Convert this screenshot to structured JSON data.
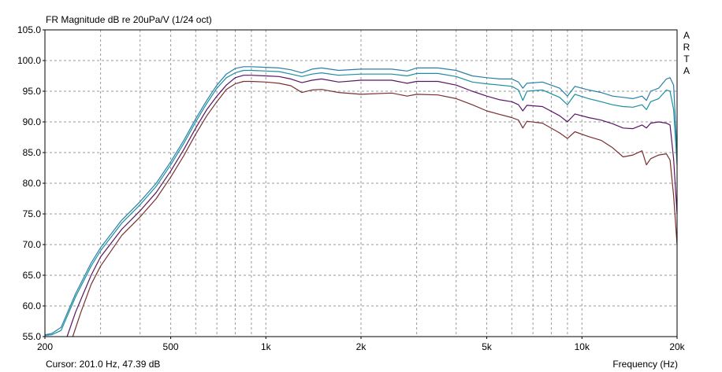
{
  "chart_data": {
    "type": "line",
    "title": "FR Magnitude dB re 20uPa/V (1/24 oct)",
    "brand": "ARTA",
    "cursor_readout": "Cursor: 201.0 Hz, 47.39 dB",
    "xlabel": "Frequency (Hz)",
    "ylabel": "",
    "xscale": "log",
    "xlim": [
      200,
      20000
    ],
    "ylim": [
      55,
      105
    ],
    "grid": true,
    "x_ticks": [
      {
        "value": 200,
        "label": "200"
      },
      {
        "value": 500,
        "label": "500"
      },
      {
        "value": 1000,
        "label": "1k"
      },
      {
        "value": 2000,
        "label": "2k"
      },
      {
        "value": 5000,
        "label": "5k"
      },
      {
        "value": 10000,
        "label": "10k"
      },
      {
        "value": 20000,
        "label": "20k"
      }
    ],
    "y_ticks": [
      {
        "value": 105,
        "label": "105.0"
      },
      {
        "value": 100,
        "label": "100.0"
      },
      {
        "value": 95,
        "label": "95.0"
      },
      {
        "value": 90,
        "label": "90.0"
      },
      {
        "value": 85,
        "label": "85.0"
      },
      {
        "value": 80,
        "label": "80.0"
      },
      {
        "value": 75,
        "label": "75.0"
      },
      {
        "value": 70,
        "label": "70.0"
      },
      {
        "value": 65,
        "label": "65.0"
      },
      {
        "value": 60,
        "label": "60.0"
      },
      {
        "value": 55,
        "label": "55.0"
      }
    ],
    "series": [
      {
        "color": "#2a7fa8",
        "points": [
          [
            200,
            55.3
          ],
          [
            210,
            55.5
          ],
          [
            225,
            56.5
          ],
          [
            250,
            62
          ],
          [
            280,
            67
          ],
          [
            300,
            69.5
          ],
          [
            350,
            74
          ],
          [
            400,
            77
          ],
          [
            450,
            80
          ],
          [
            500,
            83.5
          ],
          [
            550,
            87
          ],
          [
            600,
            90.5
          ],
          [
            650,
            93.5
          ],
          [
            700,
            96
          ],
          [
            750,
            97.8
          ],
          [
            800,
            98.7
          ],
          [
            850,
            99
          ],
          [
            900,
            99
          ],
          [
            1000,
            98.9
          ],
          [
            1100,
            98.8
          ],
          [
            1200,
            98.5
          ],
          [
            1300,
            98
          ],
          [
            1400,
            98.6
          ],
          [
            1500,
            98.8
          ],
          [
            1700,
            98.4
          ],
          [
            2000,
            98.6
          ],
          [
            2500,
            98.6
          ],
          [
            2800,
            98.3
          ],
          [
            3000,
            98.8
          ],
          [
            3500,
            98.8
          ],
          [
            4000,
            98.4
          ],
          [
            4500,
            97.5
          ],
          [
            5000,
            97.2
          ],
          [
            5500,
            97
          ],
          [
            6000,
            97
          ],
          [
            6300,
            96.5
          ],
          [
            6500,
            95.5
          ],
          [
            6700,
            96.3
          ],
          [
            7500,
            96.5
          ],
          [
            8500,
            95.5
          ],
          [
            9000,
            94.2
          ],
          [
            9500,
            95.8
          ],
          [
            10500,
            95.2
          ],
          [
            11500,
            94.8
          ],
          [
            12500,
            94.2
          ],
          [
            13500,
            94
          ],
          [
            14500,
            93.8
          ],
          [
            15500,
            94.2
          ],
          [
            16000,
            93.5
          ],
          [
            16500,
            95
          ],
          [
            17500,
            95.5
          ],
          [
            18500,
            97
          ],
          [
            19000,
            97.2
          ],
          [
            19500,
            96
          ],
          [
            20000,
            85
          ]
        ]
      },
      {
        "color": "#1a8f9f",
        "points": [
          [
            200,
            55.2
          ],
          [
            210,
            55.3
          ],
          [
            225,
            56
          ],
          [
            250,
            61.5
          ],
          [
            280,
            66.5
          ],
          [
            300,
            69
          ],
          [
            350,
            73.5
          ],
          [
            400,
            76.5
          ],
          [
            450,
            79.5
          ],
          [
            500,
            83
          ],
          [
            550,
            86.5
          ],
          [
            600,
            90
          ],
          [
            650,
            93
          ],
          [
            700,
            95.5
          ],
          [
            750,
            97.2
          ],
          [
            800,
            98
          ],
          [
            850,
            98.4
          ],
          [
            900,
            98.4
          ],
          [
            1000,
            98.3
          ],
          [
            1100,
            98.2
          ],
          [
            1200,
            97.8
          ],
          [
            1300,
            97.4
          ],
          [
            1400,
            97.8
          ],
          [
            1500,
            98
          ],
          [
            1700,
            97.6
          ],
          [
            2000,
            97.8
          ],
          [
            2500,
            97.8
          ],
          [
            2800,
            97.5
          ],
          [
            3000,
            97.9
          ],
          [
            3500,
            97.9
          ],
          [
            4000,
            97.4
          ],
          [
            4500,
            96.5
          ],
          [
            5000,
            96.2
          ],
          [
            5500,
            96
          ],
          [
            6000,
            95.8
          ],
          [
            6300,
            95.2
          ],
          [
            6500,
            93.5
          ],
          [
            6700,
            95
          ],
          [
            7500,
            95.2
          ],
          [
            8500,
            94
          ],
          [
            9000,
            92.8
          ],
          [
            9500,
            94.5
          ],
          [
            10500,
            93.8
          ],
          [
            11500,
            93.3
          ],
          [
            12500,
            92.8
          ],
          [
            13500,
            92.5
          ],
          [
            14500,
            92.4
          ],
          [
            15500,
            92.8
          ],
          [
            16000,
            92
          ],
          [
            16500,
            93.3
          ],
          [
            17500,
            93.8
          ],
          [
            18500,
            95.2
          ],
          [
            19000,
            95
          ],
          [
            19500,
            92
          ],
          [
            20000,
            83
          ]
        ]
      },
      {
        "color": "#5a1465",
        "points": [
          [
            235,
            55
          ],
          [
            250,
            59
          ],
          [
            280,
            65
          ],
          [
            300,
            68
          ],
          [
            350,
            72.5
          ],
          [
            400,
            75.5
          ],
          [
            450,
            78.5
          ],
          [
            500,
            82
          ],
          [
            550,
            85.5
          ],
          [
            600,
            89
          ],
          [
            650,
            92
          ],
          [
            700,
            94.2
          ],
          [
            750,
            96
          ],
          [
            800,
            97.2
          ],
          [
            850,
            97.6
          ],
          [
            900,
            97.6
          ],
          [
            1000,
            97.5
          ],
          [
            1100,
            97.4
          ],
          [
            1200,
            97
          ],
          [
            1300,
            96.4
          ],
          [
            1400,
            96.8
          ],
          [
            1500,
            97
          ],
          [
            1700,
            96.5
          ],
          [
            2000,
            96.8
          ],
          [
            2500,
            96.8
          ],
          [
            2800,
            96.3
          ],
          [
            3000,
            96.6
          ],
          [
            3500,
            96.6
          ],
          [
            4000,
            96
          ],
          [
            4500,
            95
          ],
          [
            5000,
            94.2
          ],
          [
            5500,
            93.6
          ],
          [
            6000,
            93.3
          ],
          [
            6300,
            92.8
          ],
          [
            6500,
            91.8
          ],
          [
            6700,
            92.7
          ],
          [
            7500,
            92.5
          ],
          [
            8500,
            91
          ],
          [
            9000,
            90
          ],
          [
            9500,
            91.3
          ],
          [
            10500,
            90.7
          ],
          [
            11500,
            90.3
          ],
          [
            12500,
            89.7
          ],
          [
            13500,
            89
          ],
          [
            14500,
            88.9
          ],
          [
            15500,
            89.5
          ],
          [
            16000,
            89
          ],
          [
            16500,
            89.8
          ],
          [
            17500,
            90
          ],
          [
            18500,
            89.8
          ],
          [
            19000,
            89.5
          ],
          [
            19500,
            84
          ],
          [
            20000,
            75
          ]
        ]
      },
      {
        "color": "#7a3030",
        "points": [
          [
            245,
            55
          ],
          [
            260,
            59
          ],
          [
            280,
            63.5
          ],
          [
            300,
            66.5
          ],
          [
            350,
            71.5
          ],
          [
            400,
            74.5
          ],
          [
            450,
            77.5
          ],
          [
            500,
            81
          ],
          [
            550,
            84.5
          ],
          [
            600,
            88
          ],
          [
            650,
            91
          ],
          [
            700,
            93.3
          ],
          [
            750,
            95.3
          ],
          [
            800,
            96.2
          ],
          [
            850,
            96.6
          ],
          [
            900,
            96.6
          ],
          [
            1000,
            96.5
          ],
          [
            1100,
            96.3
          ],
          [
            1200,
            95.9
          ],
          [
            1300,
            94.8
          ],
          [
            1400,
            95.2
          ],
          [
            1500,
            95.3
          ],
          [
            1700,
            94.8
          ],
          [
            2000,
            94.5
          ],
          [
            2500,
            94.7
          ],
          [
            2800,
            94.2
          ],
          [
            3000,
            94.5
          ],
          [
            3500,
            94.4
          ],
          [
            4000,
            93.8
          ],
          [
            4500,
            92.8
          ],
          [
            5000,
            91.8
          ],
          [
            5500,
            91.2
          ],
          [
            6000,
            90.7
          ],
          [
            6300,
            90.3
          ],
          [
            6500,
            89
          ],
          [
            6700,
            90.1
          ],
          [
            7500,
            89.8
          ],
          [
            8500,
            88.2
          ],
          [
            9000,
            87.3
          ],
          [
            9500,
            88.4
          ],
          [
            10500,
            87.6
          ],
          [
            11500,
            87
          ],
          [
            12500,
            85.8
          ],
          [
            13500,
            84.3
          ],
          [
            14500,
            84.6
          ],
          [
            15500,
            85.3
          ],
          [
            16000,
            83
          ],
          [
            16500,
            84
          ],
          [
            17500,
            84.6
          ],
          [
            18500,
            84.8
          ],
          [
            19000,
            83.8
          ],
          [
            19500,
            78
          ],
          [
            20000,
            70
          ]
        ]
      }
    ]
  }
}
